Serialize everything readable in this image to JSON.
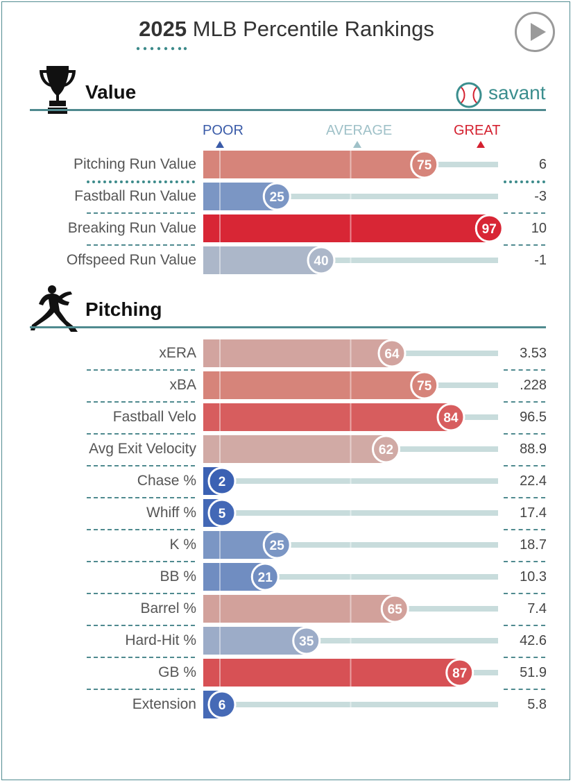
{
  "header": {
    "title_bold": "2025",
    "title_rest": "MLB Percentile Rankings",
    "play_icon": "play-icon"
  },
  "brand": {
    "name": "savant",
    "icon": "baseball-icon",
    "color": "#3b8e8e"
  },
  "scale": {
    "poor": "POOR",
    "average": "AVERAGE",
    "great": "GREAT",
    "poor_color": "#3a5ba8",
    "average_color": "#9fc1c8",
    "great_color": "#d4202f"
  },
  "chart_data": [
    {
      "type": "bar",
      "section": "Value",
      "icon": "trophy-icon",
      "xlim": [
        0,
        100
      ],
      "categories": [
        "Pitching Run Value",
        "Fastball Run Value",
        "Breaking Run Value",
        "Offspeed Run Value"
      ],
      "values": [
        75,
        25,
        97,
        40
      ],
      "stats": [
        "6",
        "-3",
        "10",
        "-1"
      ]
    },
    {
      "type": "bar",
      "section": "Pitching",
      "icon": "pitcher-icon",
      "xlim": [
        0,
        100
      ],
      "categories": [
        "xERA",
        "xBA",
        "Fastball Velo",
        "Avg Exit Velocity",
        "Chase %",
        "Whiff %",
        "K %",
        "BB %",
        "Barrel %",
        "Hard-Hit %",
        "GB %",
        "Extension"
      ],
      "values": [
        64,
        75,
        84,
        62,
        2,
        5,
        25,
        21,
        65,
        35,
        87,
        6
      ],
      "stats": [
        "3.53",
        ".228",
        "96.5",
        "88.9",
        "22.4",
        "17.4",
        "18.7",
        "10.3",
        "7.4",
        "42.6",
        "51.9",
        "5.8"
      ]
    }
  ]
}
